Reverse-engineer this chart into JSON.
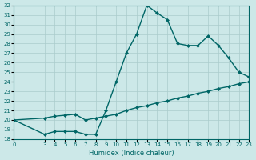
{
  "xlabel": "Humidex (Indice chaleur)",
  "bg_color": "#cce8e8",
  "line_color": "#006666",
  "grid_color": "#aacccc",
  "xlim": [
    0,
    23
  ],
  "ylim": [
    18,
    32
  ],
  "yticks": [
    18,
    19,
    20,
    21,
    22,
    23,
    24,
    25,
    26,
    27,
    28,
    29,
    30,
    31,
    32
  ],
  "xticks": [
    0,
    3,
    4,
    5,
    6,
    7,
    8,
    9,
    10,
    11,
    12,
    13,
    14,
    15,
    16,
    17,
    18,
    19,
    20,
    21,
    22,
    23
  ],
  "curve1_x": [
    0,
    3,
    4,
    5,
    6,
    7,
    8,
    9,
    10,
    11,
    12,
    13,
    14,
    15,
    16,
    17,
    18,
    19,
    20,
    21,
    22,
    23
  ],
  "curve1_y": [
    20.0,
    18.5,
    18.8,
    18.8,
    18.8,
    18.5,
    18.5,
    21.0,
    24.0,
    27.0,
    29.0,
    32.0,
    31.2,
    30.5,
    28.0,
    27.8,
    27.8,
    28.8,
    27.8,
    26.5,
    25.0,
    24.5
  ],
  "curve2_x": [
    0,
    3,
    4,
    5,
    6,
    7,
    8,
    9,
    10,
    11,
    12,
    13,
    14,
    15,
    16,
    17,
    18,
    19,
    20,
    21,
    22,
    23
  ],
  "curve2_y": [
    20.0,
    20.2,
    20.4,
    20.5,
    20.6,
    20.0,
    20.2,
    20.4,
    20.6,
    21.0,
    21.3,
    21.5,
    21.8,
    22.0,
    22.3,
    22.5,
    22.8,
    23.0,
    23.3,
    23.5,
    23.8,
    24.0
  ]
}
